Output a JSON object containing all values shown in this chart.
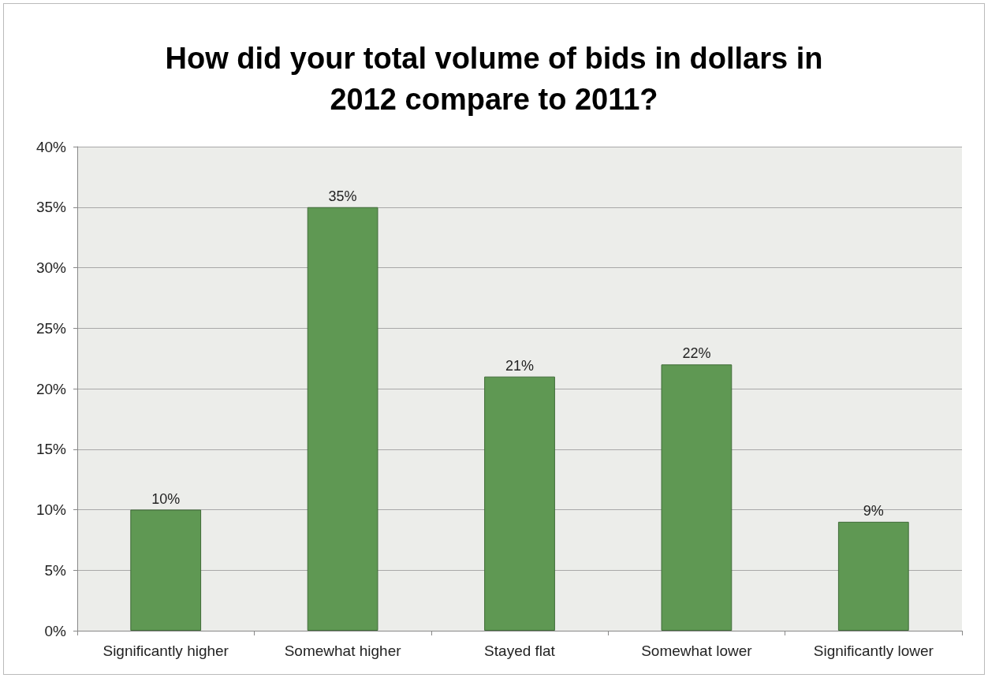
{
  "chart_data": {
    "type": "bar",
    "title": "How did your total volume of bids in dollars in\n2012 compare to 2011?",
    "categories": [
      "Significantly higher",
      "Somewhat higher",
      "Stayed flat",
      "Somewhat lower",
      "Significantly lower"
    ],
    "values": [
      10,
      35,
      21,
      22,
      9
    ],
    "value_labels": [
      "10%",
      "35%",
      "21%",
      "22%",
      "9%"
    ],
    "color": "#5f9853",
    "ylim": [
      0,
      40
    ],
    "yticks": [
      {
        "value": 0,
        "label": "0%"
      },
      {
        "value": 5,
        "label": "5%"
      },
      {
        "value": 10,
        "label": "10%"
      },
      {
        "value": 15,
        "label": "15%"
      },
      {
        "value": 20,
        "label": "20%"
      },
      {
        "value": 25,
        "label": "25%"
      },
      {
        "value": 30,
        "label": "30%"
      },
      {
        "value": 35,
        "label": "35%"
      },
      {
        "value": 40,
        "label": "40%"
      }
    ],
    "grid": "y"
  }
}
